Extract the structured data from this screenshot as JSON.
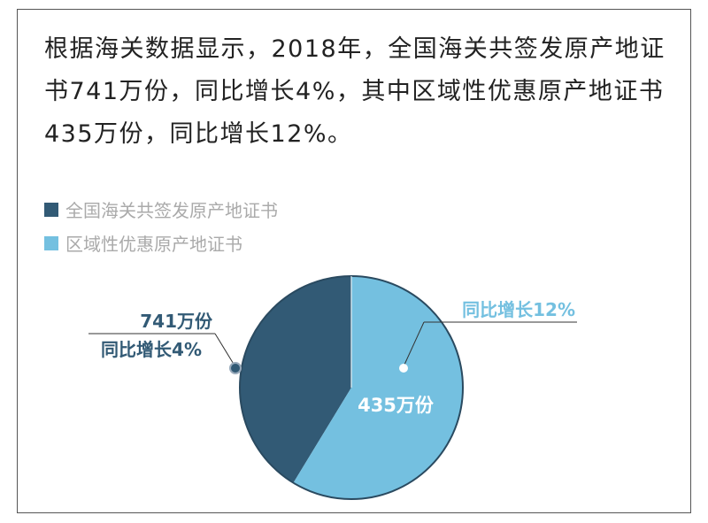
{
  "intro_text": "根据海关数据显示，2018年，全国海关共签发原产地证书741万份，同比增长4%，其中区域性优惠原产地证书435万份，同比增长12%。",
  "chart_data": {
    "type": "pie",
    "title": "",
    "series": [
      {
        "name": "全国海关共签发原产地证书",
        "value": 741,
        "unit": "万份",
        "growth_label": "同比增长4%",
        "value_label": "741万份",
        "color": "#325a75"
      },
      {
        "name": "区域性优惠原产地证书",
        "value": 435,
        "unit": "万份",
        "growth_label": "同比增长12%",
        "value_label": "435万份",
        "color": "#74c0e0"
      }
    ],
    "legend_position": "top-left"
  }
}
